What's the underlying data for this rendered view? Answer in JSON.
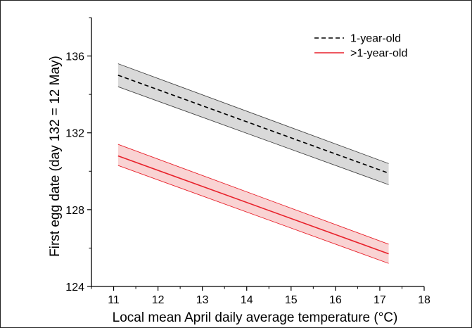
{
  "chart_data": {
    "type": "line",
    "title": "",
    "xlabel": "Local mean April daily average temperature (°C)",
    "ylabel": "First egg date (day 132 = 12 May)",
    "xlim": [
      10.5,
      18
    ],
    "ylim": [
      124,
      138
    ],
    "xticks": [
      11,
      12,
      13,
      14,
      15,
      16,
      17,
      18
    ],
    "yticks": [
      124,
      128,
      132,
      136
    ],
    "grid": false,
    "legend_position": "top-right",
    "series": [
      {
        "name": "1-year-old",
        "line_style": "dashed",
        "color": "#000000",
        "band_color": "#d9d9d9",
        "x": [
          11.1,
          17.2
        ],
        "y": [
          135.0,
          129.9
        ],
        "ci_lower": [
          134.4,
          129.3
        ],
        "ci_upper": [
          135.6,
          130.4
        ]
      },
      {
        "name": ">1-year-old",
        "line_style": "solid",
        "color": "#e8212b",
        "band_color": "#f9d3d3",
        "x": [
          11.1,
          17.2
        ],
        "y": [
          130.8,
          125.7
        ],
        "ci_lower": [
          130.3,
          125.2
        ],
        "ci_upper": [
          131.4,
          126.2
        ]
      }
    ]
  }
}
